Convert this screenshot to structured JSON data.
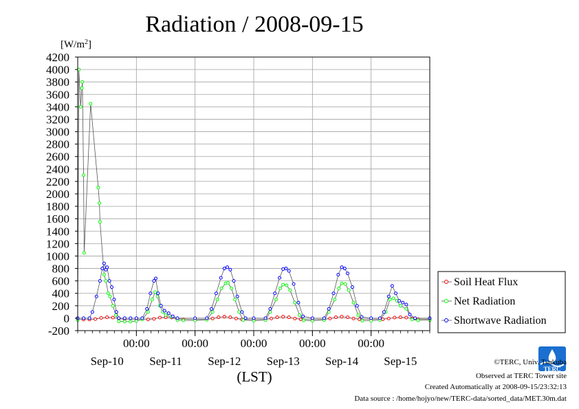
{
  "chart_data": {
    "type": "line",
    "title": "Radiation / 2008-09-15",
    "ylabel_unit": "W/m",
    "ylabel_unit_sup": "2",
    "xlabel": "(LST)",
    "ylim": [
      -200,
      4200
    ],
    "yticks": [
      -200,
      0,
      200,
      400,
      600,
      800,
      1000,
      1200,
      1400,
      1600,
      1800,
      2000,
      2200,
      2400,
      2600,
      2800,
      3000,
      3200,
      3400,
      3600,
      3800,
      4000,
      4200
    ],
    "xlim_days": [
      0,
      6
    ],
    "time_tick_labels": [
      "00:00",
      "00:00",
      "00:00",
      "00:00",
      "00:00"
    ],
    "date_labels": [
      "Sep-10",
      "Sep-11",
      "Sep-12",
      "Sep-13",
      "Sep-14",
      "Sep-15"
    ],
    "grid": true,
    "legend_position": "right",
    "series": [
      {
        "name": "Soil Heat Flux",
        "color": "#ff0000",
        "marker": "circle",
        "points": [
          [
            0.0,
            -20
          ],
          [
            0.1,
            -22
          ],
          [
            0.2,
            -22
          ],
          [
            0.3,
            -15
          ],
          [
            0.4,
            5
          ],
          [
            0.5,
            15
          ],
          [
            0.6,
            10
          ],
          [
            0.7,
            -5
          ],
          [
            0.8,
            -20
          ],
          [
            1.0,
            -22
          ],
          [
            1.2,
            -20
          ],
          [
            1.3,
            -10
          ],
          [
            1.4,
            10
          ],
          [
            1.5,
            15
          ],
          [
            1.6,
            10
          ],
          [
            1.7,
            -5
          ],
          [
            1.8,
            -18
          ],
          [
            2.0,
            -22
          ],
          [
            2.2,
            -20
          ],
          [
            2.3,
            -5
          ],
          [
            2.4,
            15
          ],
          [
            2.5,
            25
          ],
          [
            2.6,
            15
          ],
          [
            2.7,
            -5
          ],
          [
            2.8,
            -20
          ],
          [
            3.0,
            -22
          ],
          [
            3.2,
            -20
          ],
          [
            3.3,
            -5
          ],
          [
            3.4,
            15
          ],
          [
            3.5,
            25
          ],
          [
            3.6,
            15
          ],
          [
            3.7,
            -5
          ],
          [
            3.8,
            -18
          ],
          [
            4.0,
            -22
          ],
          [
            4.2,
            -20
          ],
          [
            4.3,
            -5
          ],
          [
            4.4,
            15
          ],
          [
            4.5,
            25
          ],
          [
            4.6,
            15
          ],
          [
            4.7,
            -5
          ],
          [
            4.8,
            -18
          ],
          [
            5.0,
            -20
          ],
          [
            5.2,
            -18
          ],
          [
            5.3,
            -5
          ],
          [
            5.4,
            10
          ],
          [
            5.5,
            15
          ],
          [
            5.6,
            10
          ],
          [
            5.7,
            -5
          ],
          [
            5.8,
            -15
          ],
          [
            6.0,
            -15
          ]
        ]
      },
      {
        "name": "Net Radiation",
        "color": "#00ff00",
        "marker": "circle",
        "points": [
          [
            0.0,
            -30
          ],
          [
            0.02,
            4000
          ],
          [
            0.05,
            3400
          ],
          [
            0.07,
            3700
          ],
          [
            0.08,
            3800
          ],
          [
            0.1,
            2300
          ],
          [
            0.11,
            1050
          ],
          [
            0.22,
            3450
          ],
          [
            0.35,
            2100
          ],
          [
            0.37,
            1850
          ],
          [
            0.38,
            1550
          ],
          [
            0.45,
            700
          ],
          [
            0.48,
            600
          ],
          [
            0.52,
            400
          ],
          [
            0.55,
            350
          ],
          [
            0.6,
            200
          ],
          [
            0.65,
            50
          ],
          [
            0.7,
            -50
          ],
          [
            0.8,
            -55
          ],
          [
            0.9,
            -55
          ],
          [
            1.0,
            -45
          ],
          [
            1.1,
            -20
          ],
          [
            1.2,
            100
          ],
          [
            1.27,
            300
          ],
          [
            1.32,
            420
          ],
          [
            1.36,
            350
          ],
          [
            1.4,
            200
          ],
          [
            1.45,
            100
          ],
          [
            1.5,
            50
          ],
          [
            1.6,
            20
          ],
          [
            1.7,
            -30
          ],
          [
            1.8,
            -35
          ],
          [
            2.0,
            -35
          ],
          [
            2.2,
            -25
          ],
          [
            2.3,
            100
          ],
          [
            2.38,
            300
          ],
          [
            2.45,
            480
          ],
          [
            2.52,
            560
          ],
          [
            2.56,
            570
          ],
          [
            2.62,
            480
          ],
          [
            2.68,
            300
          ],
          [
            2.75,
            100
          ],
          [
            2.82,
            -30
          ],
          [
            3.0,
            -40
          ],
          [
            3.2,
            -30
          ],
          [
            3.28,
            100
          ],
          [
            3.38,
            300
          ],
          [
            3.45,
            480
          ],
          [
            3.5,
            540
          ],
          [
            3.56,
            530
          ],
          [
            3.62,
            450
          ],
          [
            3.7,
            250
          ],
          [
            3.78,
            50
          ],
          [
            3.85,
            -35
          ],
          [
            4.0,
            -40
          ],
          [
            4.2,
            -30
          ],
          [
            4.28,
            100
          ],
          [
            4.38,
            300
          ],
          [
            4.45,
            480
          ],
          [
            4.5,
            560
          ],
          [
            4.56,
            550
          ],
          [
            4.62,
            450
          ],
          [
            4.7,
            250
          ],
          [
            4.78,
            50
          ],
          [
            4.85,
            -40
          ],
          [
            5.0,
            -40
          ],
          [
            5.15,
            -30
          ],
          [
            5.25,
            100
          ],
          [
            5.32,
            300
          ],
          [
            5.38,
            320
          ],
          [
            5.44,
            280
          ],
          [
            5.5,
            200
          ],
          [
            5.6,
            150
          ],
          [
            5.7,
            -20
          ],
          [
            5.8,
            -35
          ],
          [
            6.0,
            -30
          ]
        ]
      },
      {
        "name": "Shortwave Radiation",
        "color": "#0000ff",
        "marker": "circle",
        "points": [
          [
            0.0,
            0
          ],
          [
            0.1,
            0
          ],
          [
            0.2,
            0
          ],
          [
            0.25,
            100
          ],
          [
            0.32,
            350
          ],
          [
            0.38,
            600
          ],
          [
            0.42,
            800
          ],
          [
            0.45,
            880
          ],
          [
            0.48,
            780
          ],
          [
            0.5,
            820
          ],
          [
            0.54,
            600
          ],
          [
            0.58,
            500
          ],
          [
            0.62,
            300
          ],
          [
            0.66,
            100
          ],
          [
            0.7,
            0
          ],
          [
            0.8,
            0
          ],
          [
            0.9,
            0
          ],
          [
            1.0,
            0
          ],
          [
            1.1,
            0
          ],
          [
            1.18,
            150
          ],
          [
            1.24,
            400
          ],
          [
            1.3,
            600
          ],
          [
            1.33,
            640
          ],
          [
            1.37,
            400
          ],
          [
            1.42,
            200
          ],
          [
            1.48,
            120
          ],
          [
            1.55,
            80
          ],
          [
            1.62,
            30
          ],
          [
            1.7,
            0
          ],
          [
            2.0,
            0
          ],
          [
            2.2,
            0
          ],
          [
            2.28,
            150
          ],
          [
            2.36,
            400
          ],
          [
            2.44,
            650
          ],
          [
            2.5,
            800
          ],
          [
            2.55,
            820
          ],
          [
            2.6,
            780
          ],
          [
            2.66,
            600
          ],
          [
            2.72,
            350
          ],
          [
            2.8,
            100
          ],
          [
            2.86,
            0
          ],
          [
            3.0,
            0
          ],
          [
            3.2,
            0
          ],
          [
            3.28,
            150
          ],
          [
            3.36,
            400
          ],
          [
            3.44,
            650
          ],
          [
            3.5,
            790
          ],
          [
            3.55,
            800
          ],
          [
            3.6,
            760
          ],
          [
            3.68,
            550
          ],
          [
            3.76,
            250
          ],
          [
            3.84,
            30
          ],
          [
            4.0,
            0
          ],
          [
            4.2,
            0
          ],
          [
            4.28,
            150
          ],
          [
            4.36,
            400
          ],
          [
            4.44,
            700
          ],
          [
            4.5,
            820
          ],
          [
            4.55,
            800
          ],
          [
            4.6,
            720
          ],
          [
            4.68,
            500
          ],
          [
            4.76,
            200
          ],
          [
            4.84,
            20
          ],
          [
            5.0,
            0
          ],
          [
            5.15,
            0
          ],
          [
            5.22,
            100
          ],
          [
            5.3,
            350
          ],
          [
            5.36,
            520
          ],
          [
            5.42,
            400
          ],
          [
            5.48,
            280
          ],
          [
            5.54,
            250
          ],
          [
            5.6,
            220
          ],
          [
            5.66,
            60
          ],
          [
            5.75,
            0
          ],
          [
            6.0,
            0
          ]
        ]
      }
    ]
  },
  "footer": {
    "copyright": "©TERC, Univ. Tsukuba",
    "observed": "Observed at TERC Tower site",
    "created": "Created Automatically at 2008-09-15/23:32:13",
    "source": "Data source : /home/hojyo/new/TERC-data/sorted_data/MET.30m.dat"
  },
  "logo": {
    "text": "TERC",
    "color": "#1a6fd0"
  }
}
